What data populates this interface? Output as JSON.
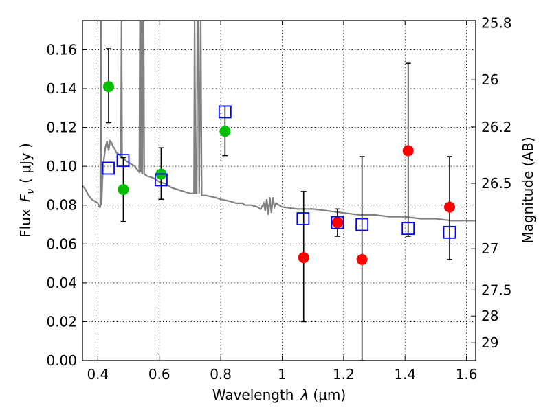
{
  "chart_data": {
    "type": "scatter",
    "xlabel": "Wavelength",
    "xlabel_symbol": "λ",
    "xlabel_unit": "(μm)",
    "ylabel": "Flux",
    "ylabel_symbol": "F",
    "ylabel_subscript": "ν",
    "ylabel_unit": "( μJy )",
    "y2label": "Magnitude (AB)",
    "xlim": [
      0.35,
      1.63
    ],
    "ylim": [
      0,
      0.175
    ],
    "grid": true,
    "x_ticks": [
      0.4,
      0.6,
      0.8,
      1.0,
      1.2,
      1.4,
      1.6
    ],
    "x_tick_labels": [
      "0.4",
      "0.6",
      "0.8",
      "1",
      "1.2",
      "1.4",
      "1.6"
    ],
    "y_ticks": [
      0,
      0.02,
      0.04,
      0.06,
      0.08,
      0.1,
      0.12,
      0.14,
      0.16
    ],
    "y_tick_labels": [
      "0.00",
      "0.02",
      "0.04",
      "0.06",
      "0.08",
      "0.10",
      "0.12",
      "0.14",
      "0.16"
    ],
    "y2_ticks": [
      25.8,
      26,
      26.2,
      26.5,
      27,
      27.5,
      28,
      29
    ],
    "y2_tick_labels": [
      "25.8",
      "26",
      "26.2",
      "26.5",
      "27",
      "27.5",
      "28",
      "29"
    ],
    "series": [
      {
        "marker": "circle",
        "color": "#00bf00",
        "points": [
          {
            "x": 0.435,
            "y": 0.141,
            "err": [
              0.1225,
              0.1605
            ]
          },
          {
            "x": 0.483,
            "y": 0.088,
            "err": [
              0.0715,
              0.1045
            ]
          },
          {
            "x": 0.606,
            "y": 0.096,
            "err": [
              0.083,
              0.1095
            ]
          },
          {
            "x": 0.814,
            "y": 0.118,
            "err": [
              0.1055,
              0.131
            ]
          }
        ]
      },
      {
        "marker": "circle",
        "color": "#ff0000",
        "points": [
          {
            "x": 1.07,
            "y": 0.053,
            "err": [
              0.02,
              0.087
            ]
          },
          {
            "x": 1.18,
            "y": 0.071,
            "err": [
              0.064,
              0.078
            ]
          },
          {
            "x": 1.26,
            "y": 0.052,
            "err": [
              0.0,
              0.105
            ]
          },
          {
            "x": 1.41,
            "y": 0.108,
            "err": [
              0.064,
              0.153
            ]
          },
          {
            "x": 1.545,
            "y": 0.079,
            "err": [
              0.052,
              0.105
            ]
          }
        ]
      },
      {
        "marker": "square",
        "color": "#0000ff",
        "points": [
          {
            "x": 0.434,
            "y": 0.099
          },
          {
            "x": 0.482,
            "y": 0.103
          },
          {
            "x": 0.606,
            "y": 0.093
          },
          {
            "x": 0.814,
            "y": 0.128
          },
          {
            "x": 1.068,
            "y": 0.073
          },
          {
            "x": 1.18,
            "y": 0.071
          },
          {
            "x": 1.26,
            "y": 0.07
          },
          {
            "x": 1.41,
            "y": 0.068
          },
          {
            "x": 1.545,
            "y": 0.066
          }
        ]
      }
    ],
    "model_spectrum": {
      "color": "#808080",
      "points": [
        [
          0.35,
          0.09
        ],
        [
          0.36,
          0.088
        ],
        [
          0.37,
          0.085
        ],
        [
          0.38,
          0.083
        ],
        [
          0.39,
          0.082
        ],
        [
          0.4,
          0.081
        ],
        [
          0.405,
          0.079
        ],
        [
          0.408,
          0.079
        ],
        [
          0.409,
          0.175
        ],
        [
          0.411,
          0.175
        ],
        [
          0.412,
          0.08
        ],
        [
          0.415,
          0.093
        ],
        [
          0.42,
          0.104
        ],
        [
          0.425,
          0.11
        ],
        [
          0.43,
          0.113
        ],
        [
          0.435,
          0.108
        ],
        [
          0.44,
          0.113
        ],
        [
          0.445,
          0.112
        ],
        [
          0.45,
          0.11
        ],
        [
          0.455,
          0.109
        ],
        [
          0.46,
          0.107
        ],
        [
          0.47,
          0.106
        ],
        [
          0.475,
          0.105
        ],
        [
          0.477,
          0.175
        ],
        [
          0.479,
          0.104
        ],
        [
          0.485,
          0.104
        ],
        [
          0.49,
          0.103
        ],
        [
          0.5,
          0.102
        ],
        [
          0.51,
          0.101
        ],
        [
          0.52,
          0.1
        ],
        [
          0.53,
          0.098
        ],
        [
          0.535,
          0.097
        ],
        [
          0.537,
          0.175
        ],
        [
          0.539,
          0.097
        ],
        [
          0.541,
          0.175
        ],
        [
          0.543,
          0.097
        ],
        [
          0.545,
          0.096
        ],
        [
          0.547,
          0.175
        ],
        [
          0.549,
          0.175
        ],
        [
          0.551,
          0.096
        ],
        [
          0.56,
          0.095
        ],
        [
          0.58,
          0.094
        ],
        [
          0.6,
          0.092
        ],
        [
          0.62,
          0.091
        ],
        [
          0.64,
          0.089
        ],
        [
          0.66,
          0.088
        ],
        [
          0.68,
          0.087
        ],
        [
          0.7,
          0.086
        ],
        [
          0.713,
          0.086
        ],
        [
          0.715,
          0.175
        ],
        [
          0.718,
          0.086
        ],
        [
          0.722,
          0.086
        ],
        [
          0.724,
          0.175
        ],
        [
          0.727,
          0.175
        ],
        [
          0.73,
          0.086
        ],
        [
          0.735,
          0.175
        ],
        [
          0.738,
          0.085
        ],
        [
          0.75,
          0.085
        ],
        [
          0.78,
          0.084
        ],
        [
          0.8,
          0.083
        ],
        [
          0.83,
          0.082
        ],
        [
          0.85,
          0.081
        ],
        [
          0.87,
          0.081
        ],
        [
          0.88,
          0.08
        ],
        [
          0.9,
          0.08
        ],
        [
          0.92,
          0.079
        ],
        [
          0.93,
          0.078
        ],
        [
          0.94,
          0.081
        ],
        [
          0.945,
          0.077
        ],
        [
          0.95,
          0.083
        ],
        [
          0.955,
          0.075
        ],
        [
          0.96,
          0.084
        ],
        [
          0.965,
          0.076
        ],
        [
          0.97,
          0.084
        ],
        [
          0.975,
          0.079
        ],
        [
          0.98,
          0.081
        ],
        [
          0.99,
          0.08
        ],
        [
          1.0,
          0.079
        ],
        [
          1.05,
          0.078
        ],
        [
          1.1,
          0.078
        ],
        [
          1.15,
          0.077
        ],
        [
          1.2,
          0.076
        ],
        [
          1.25,
          0.075
        ],
        [
          1.3,
          0.075
        ],
        [
          1.35,
          0.074
        ],
        [
          1.4,
          0.074
        ],
        [
          1.45,
          0.073
        ],
        [
          1.5,
          0.073
        ],
        [
          1.55,
          0.072
        ],
        [
          1.6,
          0.072
        ],
        [
          1.63,
          0.072
        ]
      ]
    }
  }
}
